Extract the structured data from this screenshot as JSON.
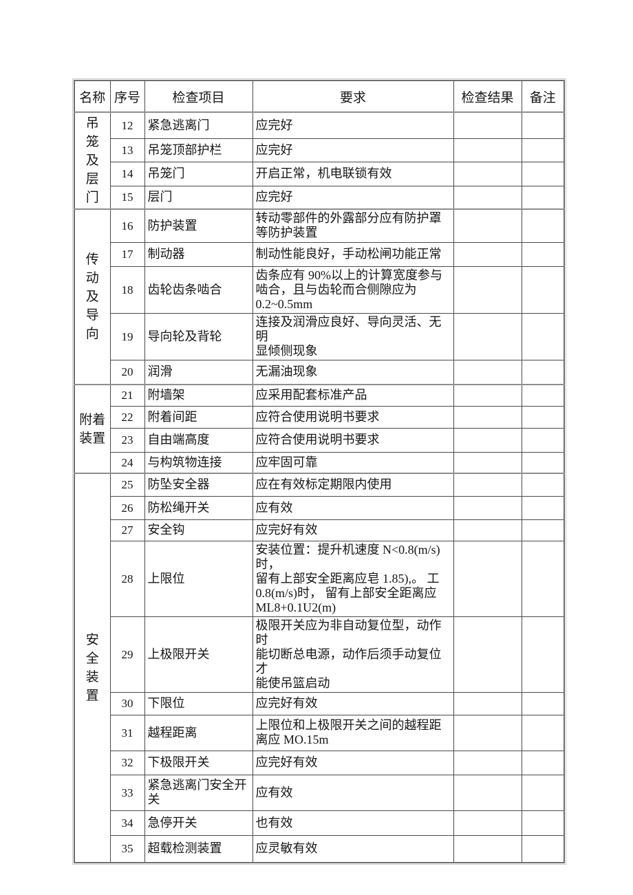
{
  "table": {
    "headers": {
      "name": "名称",
      "no": "序号",
      "item": "检查项目",
      "requirement": "要求",
      "result": "检查结果",
      "note": "备注"
    },
    "groups": [
      {
        "name": "吊笼及层门",
        "rows": [
          {
            "no": "12",
            "item": "紧急逃离门",
            "req": "应完好"
          },
          {
            "no": "13",
            "item": "吊笼顶部护栏",
            "req": "应完好"
          },
          {
            "no": "14",
            "item": "吊笼门",
            "req": "开启正常，机电联锁有效"
          },
          {
            "no": "15",
            "item": "层门",
            "req": "应完好"
          }
        ]
      },
      {
        "name": "传动及导向",
        "rows": [
          {
            "no": "16",
            "item": "防护装置",
            "req": "转动零部件的外露部分应有防护罩\n等防护装置"
          },
          {
            "no": "17",
            "item": "制动器",
            "req": "制动性能良好，手动松闸功能正常"
          },
          {
            "no": "18",
            "item": "齿轮齿条啮合",
            "req": "齿条应有 90%以上的计算宽度参与\n啮合，且与齿轮而合侧隙应为\n0.2~0.5mm"
          },
          {
            "no": "19",
            "item": "导向轮及背轮",
            "req": "连接及润滑应良好、导向灵活、无明\n显倾侧现象"
          },
          {
            "no": "20",
            "item": "润滑",
            "req": "无漏油现象"
          }
        ]
      },
      {
        "name": "附着装置",
        "rows": [
          {
            "no": "21",
            "item": "附墙架",
            "req": "应采用配套标准产品"
          },
          {
            "no": "22",
            "item": "附着间距",
            "req": "应符合使用说明书要求"
          },
          {
            "no": "23",
            "item": "自由端高度",
            "req": "应符合使用说明书要求"
          },
          {
            "no": "24",
            "item": "与构筑物连接",
            "req": "应牢固可靠"
          }
        ]
      },
      {
        "name": "安全装置",
        "rows": [
          {
            "no": "25",
            "item": "防坠安全器",
            "req": "应在有效标定期限内使用"
          },
          {
            "no": "26",
            "item": "防松绳开关",
            "req": "应有效"
          },
          {
            "no": "27",
            "item": "安全钩",
            "req": "应完好有效"
          },
          {
            "no": "28",
            "item": "上限位",
            "req": "安装位置：提升机速度 N<0.8(m/s)时，\n留有上部安全距离应皂 1.85),。 工\n0.8(m/s)时， 留有上部安全距离应\nML8+0.1U2(m)"
          },
          {
            "no": "29",
            "item": "上极限开关",
            "req": "极限开关应为非自动复位型，动作时\n能切断总电源，动作后须手动复位才\n能使吊篮启动"
          },
          {
            "no": "30",
            "item": "下限位",
            "req": "应完好有效"
          },
          {
            "no": "31",
            "item": "越程距离",
            "req": "上限位和上极限开关之间的越程距\n离应 MO.15m"
          },
          {
            "no": "32",
            "item": "下极限开关",
            "req": "应完好有效"
          },
          {
            "no": "33",
            "item": "紧急逃离门安全开\n关",
            "req": "应有效"
          },
          {
            "no": "34",
            "item": "急停开关",
            "req": "也有效"
          },
          {
            "no": "35",
            "item": "超载检测装置",
            "req": "应灵敏有效"
          }
        ]
      }
    ]
  }
}
